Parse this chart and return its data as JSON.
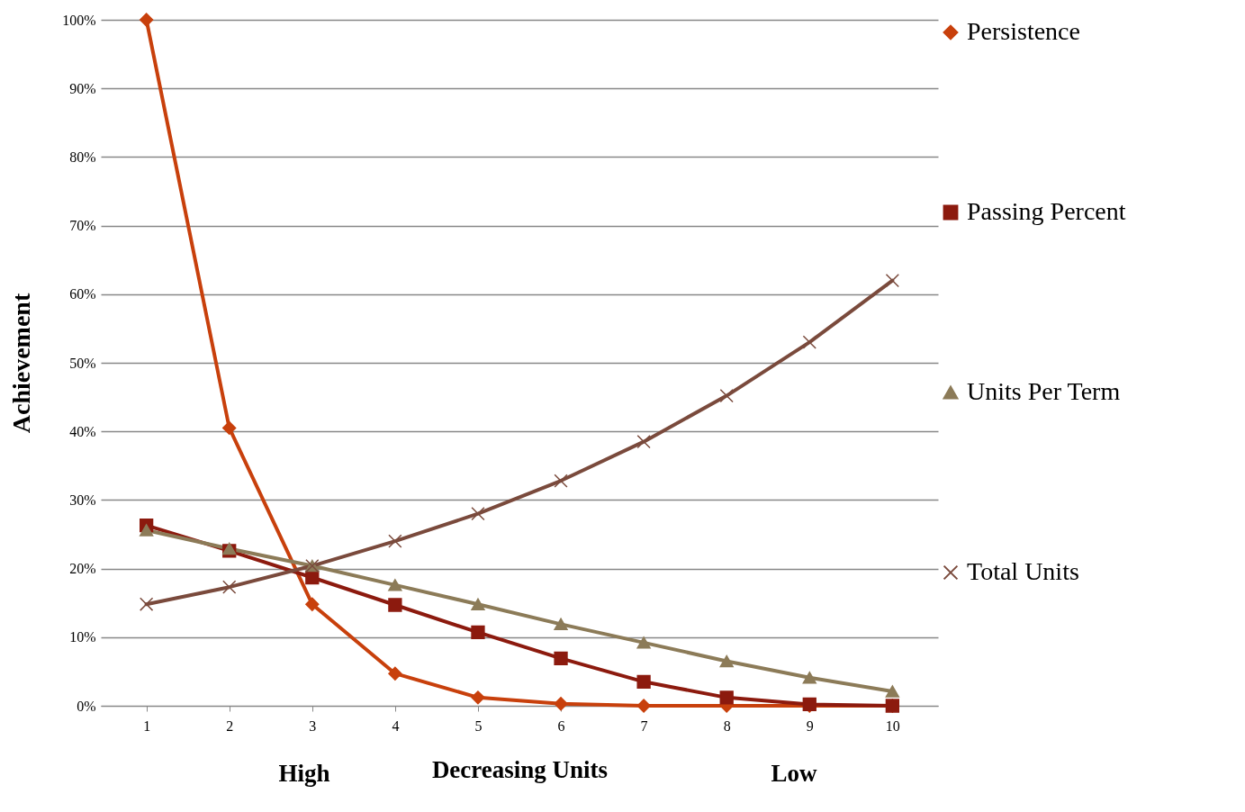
{
  "chart_data": {
    "type": "line",
    "ylabel": "Achievement",
    "xlabel": "Decreasing Units",
    "annotations": [
      "High",
      "Low"
    ],
    "categories": [
      "1",
      "2",
      "3",
      "4",
      "5",
      "6",
      "7",
      "8",
      "9",
      "10"
    ],
    "series": [
      {
        "name": "Persistence",
        "color": "#c8400c",
        "marker": "diamond",
        "values": [
          100,
          40.5,
          14.8,
          4.7,
          1.2,
          0.3,
          0,
          0,
          0,
          0
        ]
      },
      {
        "name": "Passing Percent",
        "color": "#8c1a0e",
        "marker": "square",
        "values": [
          26.3,
          22.6,
          18.7,
          14.7,
          10.7,
          6.9,
          3.5,
          1.2,
          0.2,
          0
        ]
      },
      {
        "name": "Units Per Term",
        "color": "#8c7b58",
        "marker": "triangle",
        "values": [
          25.6,
          22.9,
          20.4,
          17.6,
          14.8,
          11.9,
          9.2,
          6.5,
          4.1,
          2.1
        ]
      },
      {
        "name": "Total Units",
        "color": "#7a4a3c",
        "marker": "cross",
        "values": [
          14.8,
          17.3,
          20.4,
          24.0,
          28.0,
          32.8,
          38.5,
          45.2,
          53.0,
          62.0
        ]
      }
    ],
    "ylim": [
      0,
      100
    ],
    "yticks": [
      {
        "value": 0,
        "label": "0%"
      },
      {
        "value": 10,
        "label": "10%"
      },
      {
        "value": 20,
        "label": "20%"
      },
      {
        "value": 30,
        "label": "30%"
      },
      {
        "value": 40,
        "label": "40%"
      },
      {
        "value": 50,
        "label": "50%"
      },
      {
        "value": 60,
        "label": "60%"
      },
      {
        "value": 70,
        "label": "70%"
      },
      {
        "value": 80,
        "label": "80%"
      },
      {
        "value": 90,
        "label": "90%"
      },
      {
        "value": 100,
        "label": "100%"
      }
    ],
    "grid": "y",
    "legend": "right",
    "line_style": "solid"
  }
}
